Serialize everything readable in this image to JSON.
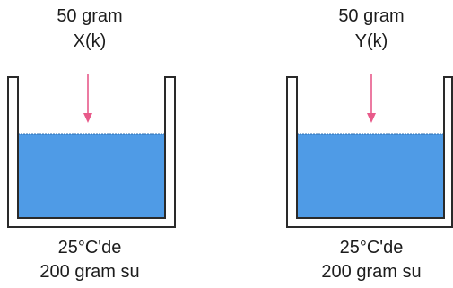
{
  "colors": {
    "water": "#4f9be6",
    "water_surface": "#2f6fb0",
    "container": "#2a2a2a",
    "arrow": "#e85a8a",
    "text": "#1c1c1c"
  },
  "left_beaker": {
    "solute_amount": "50 gram",
    "solute_name": "X(k)",
    "temperature": "25°C'de",
    "solvent": "200 gram su"
  },
  "right_beaker": {
    "solute_amount": "50 gram",
    "solute_name": "Y(k)",
    "temperature": "25°C'de",
    "solvent": "200 gram su"
  }
}
